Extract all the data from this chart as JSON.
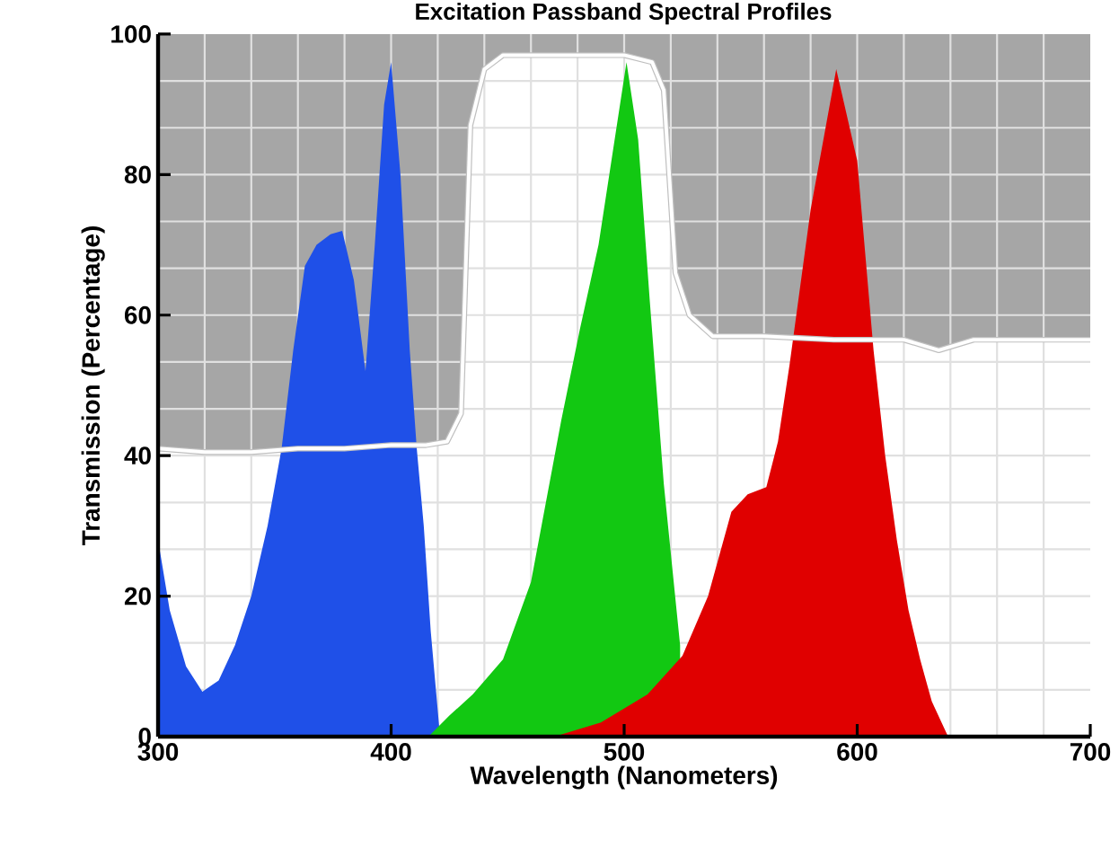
{
  "chart_data": {
    "type": "area",
    "title": "Excitation Passband Spectral Profiles",
    "xlabel": "Wavelength (Nanometers)",
    "ylabel": "Transmission (Percentage)",
    "xlim": [
      300,
      700
    ],
    "ylim": [
      0,
      100
    ],
    "xticks": [
      300,
      400,
      500,
      600,
      700
    ],
    "yticks": [
      0,
      20,
      40,
      60,
      80,
      100
    ],
    "grid": true,
    "series": [
      {
        "color": "#ffffff",
        "x": [
          300,
          320,
          340,
          360,
          380,
          400,
          415,
          424,
          430,
          434,
          440,
          448,
          470,
          500,
          512,
          517,
          522,
          528,
          538,
          560,
          590,
          620,
          635,
          650,
          680,
          700
        ],
        "values": [
          41,
          40.5,
          40.5,
          41,
          41,
          41.5,
          41.5,
          42,
          46,
          87,
          95,
          97,
          97,
          97,
          96,
          92,
          66,
          60,
          57,
          57,
          56.5,
          56.5,
          55,
          56.5,
          56.5,
          56.5
        ]
      },
      {
        "color": "#1f50e8",
        "x": [
          300,
          305,
          312,
          319,
          326,
          333,
          340,
          347,
          353,
          358,
          363,
          368,
          374,
          379,
          384,
          389,
          393,
          397,
          400,
          404,
          408,
          411,
          414,
          417,
          421
        ],
        "values": [
          28,
          18,
          10,
          6.4,
          8,
          13,
          20,
          30,
          41,
          55,
          67,
          70,
          71.5,
          72,
          65,
          52,
          70,
          90,
          96,
          80,
          55,
          41,
          30,
          15,
          0
        ]
      },
      {
        "color": "#12c812",
        "x": [
          416,
          425,
          435,
          448,
          460,
          473,
          481,
          489,
          495,
          501,
          506,
          511,
          517,
          524
        ],
        "values": [
          0,
          3,
          6,
          11,
          22,
          45,
          58,
          70,
          83,
          96,
          85,
          62,
          36,
          13
        ]
      },
      {
        "color": "#e00000",
        "x": [
          470,
          490,
          510,
          525,
          536,
          546,
          553,
          561,
          566,
          571,
          580,
          591,
          600,
          607,
          612,
          617,
          622,
          627,
          632,
          639
        ],
        "values": [
          0,
          2,
          6,
          11.5,
          20,
          32,
          34.5,
          35.5,
          42,
          53,
          75,
          95,
          82,
          55,
          40,
          28,
          18,
          11,
          5,
          0
        ]
      }
    ]
  }
}
